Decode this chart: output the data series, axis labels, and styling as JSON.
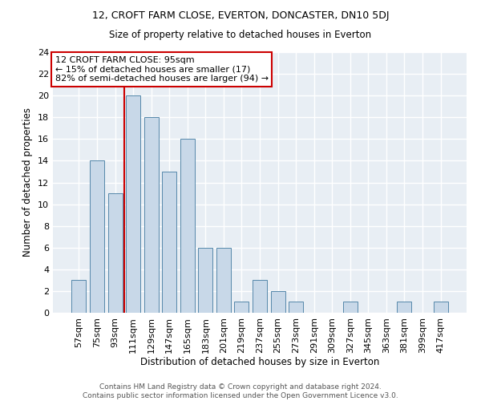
{
  "title1": "12, CROFT FARM CLOSE, EVERTON, DONCASTER, DN10 5DJ",
  "title2": "Size of property relative to detached houses in Everton",
  "xlabel": "Distribution of detached houses by size in Everton",
  "ylabel": "Number of detached properties",
  "categories": [
    "57sqm",
    "75sqm",
    "93sqm",
    "111sqm",
    "129sqm",
    "147sqm",
    "165sqm",
    "183sqm",
    "201sqm",
    "219sqm",
    "237sqm",
    "255sqm",
    "273sqm",
    "291sqm",
    "309sqm",
    "327sqm",
    "345sqm",
    "363sqm",
    "381sqm",
    "399sqm",
    "417sqm"
  ],
  "values": [
    3,
    14,
    11,
    20,
    18,
    13,
    16,
    6,
    6,
    1,
    3,
    2,
    1,
    0,
    0,
    1,
    0,
    0,
    1,
    0,
    1
  ],
  "bar_color": "#c8d8e8",
  "bar_edge_color": "#5588aa",
  "vline_color": "#cc0000",
  "annotation_text": "12 CROFT FARM CLOSE: 95sqm\n← 15% of detached houses are smaller (17)\n82% of semi-detached houses are larger (94) →",
  "annotation_box_color": "#ffffff",
  "annotation_box_edge_color": "#cc0000",
  "footer_text": "Contains HM Land Registry data © Crown copyright and database right 2024.\nContains public sector information licensed under the Open Government Licence v3.0.",
  "ylim": [
    0,
    24
  ],
  "yticks": [
    0,
    2,
    4,
    6,
    8,
    10,
    12,
    14,
    16,
    18,
    20,
    22,
    24
  ],
  "background_color": "#e8eef4",
  "grid_color": "#ffffff"
}
